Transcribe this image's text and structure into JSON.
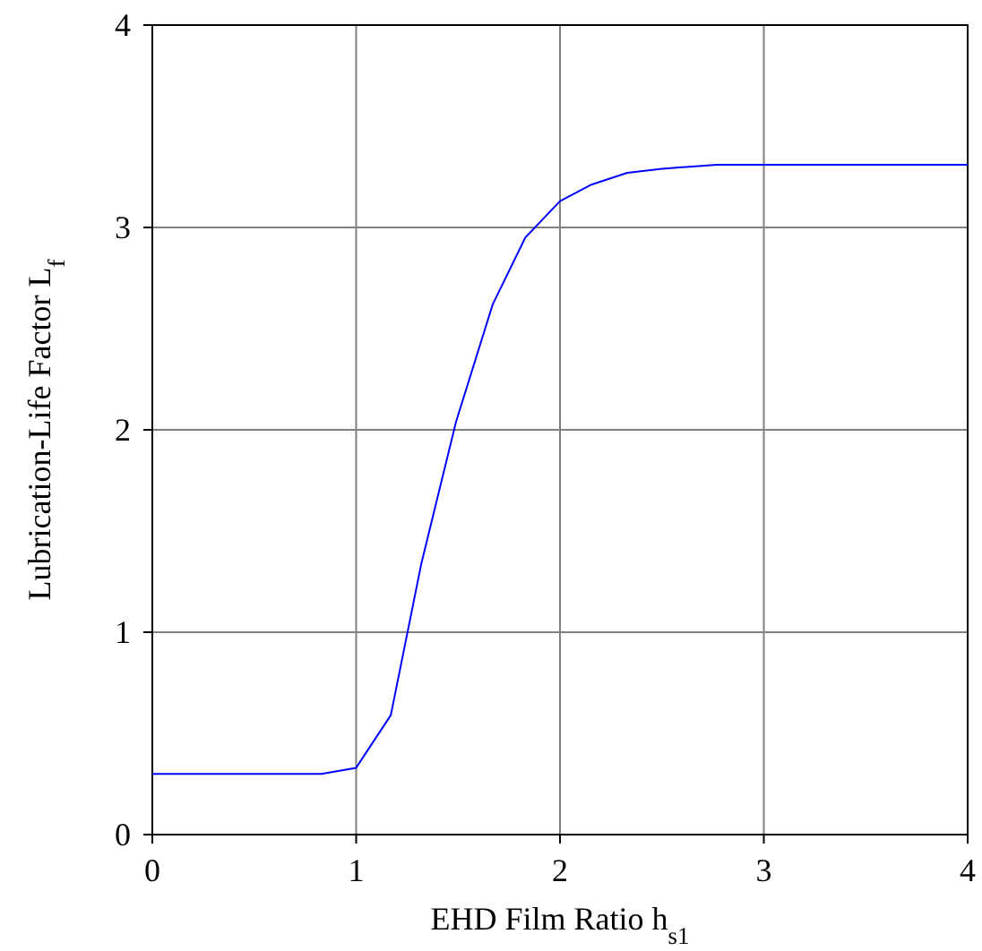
{
  "chart_data": {
    "type": "line",
    "xlabel": "EHD Film Ratio h$_{s1}$",
    "ylabel": "Lubrication-Life Factor L$_{f}$",
    "xlim": [
      0,
      4
    ],
    "ylim": [
      0,
      4
    ],
    "xticks": [
      0,
      1,
      2,
      3,
      4
    ],
    "yticks": [
      0,
      1,
      2,
      3,
      4
    ],
    "grid": true,
    "marker": "none",
    "line_style": "solid",
    "series": [
      {
        "color": "#0000ff",
        "x": [
          0,
          0.83,
          1.0,
          1.17,
          1.32,
          1.49,
          1.67,
          1.83,
          2.0,
          2.15,
          2.33,
          2.5,
          2.77,
          4
        ],
        "values": [
          0.3,
          0.3,
          0.33,
          0.59,
          1.34,
          2.04,
          2.62,
          2.95,
          3.13,
          3.21,
          3.27,
          3.29,
          3.31,
          3.31
        ]
      }
    ]
  }
}
